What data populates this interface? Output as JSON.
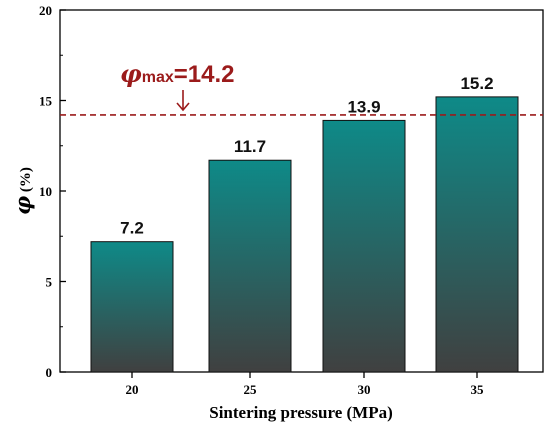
{
  "chart_data": {
    "type": "bar",
    "categories": [
      "20",
      "25",
      "30",
      "35"
    ],
    "values": [
      7.2,
      11.7,
      13.9,
      15.2
    ],
    "value_labels": [
      "7.2",
      "11.7",
      "13.9",
      "15.2"
    ],
    "xlabel": "Sintering pressure (MPa)",
    "ylabel": {
      "symbol": "φ",
      "unit": " (%)"
    },
    "ylim": [
      0,
      20
    ],
    "yticks": [
      "0",
      "5",
      "10",
      "15",
      "20"
    ],
    "grid": false,
    "reference_line": {
      "value": 14.2,
      "symbol": "φ",
      "subscript": "max",
      "text": "=14.2",
      "color": "#9b1b1b",
      "style": "dashed"
    },
    "bar_colors": {
      "top": "#0e8a88",
      "bottom": "#404040"
    }
  }
}
